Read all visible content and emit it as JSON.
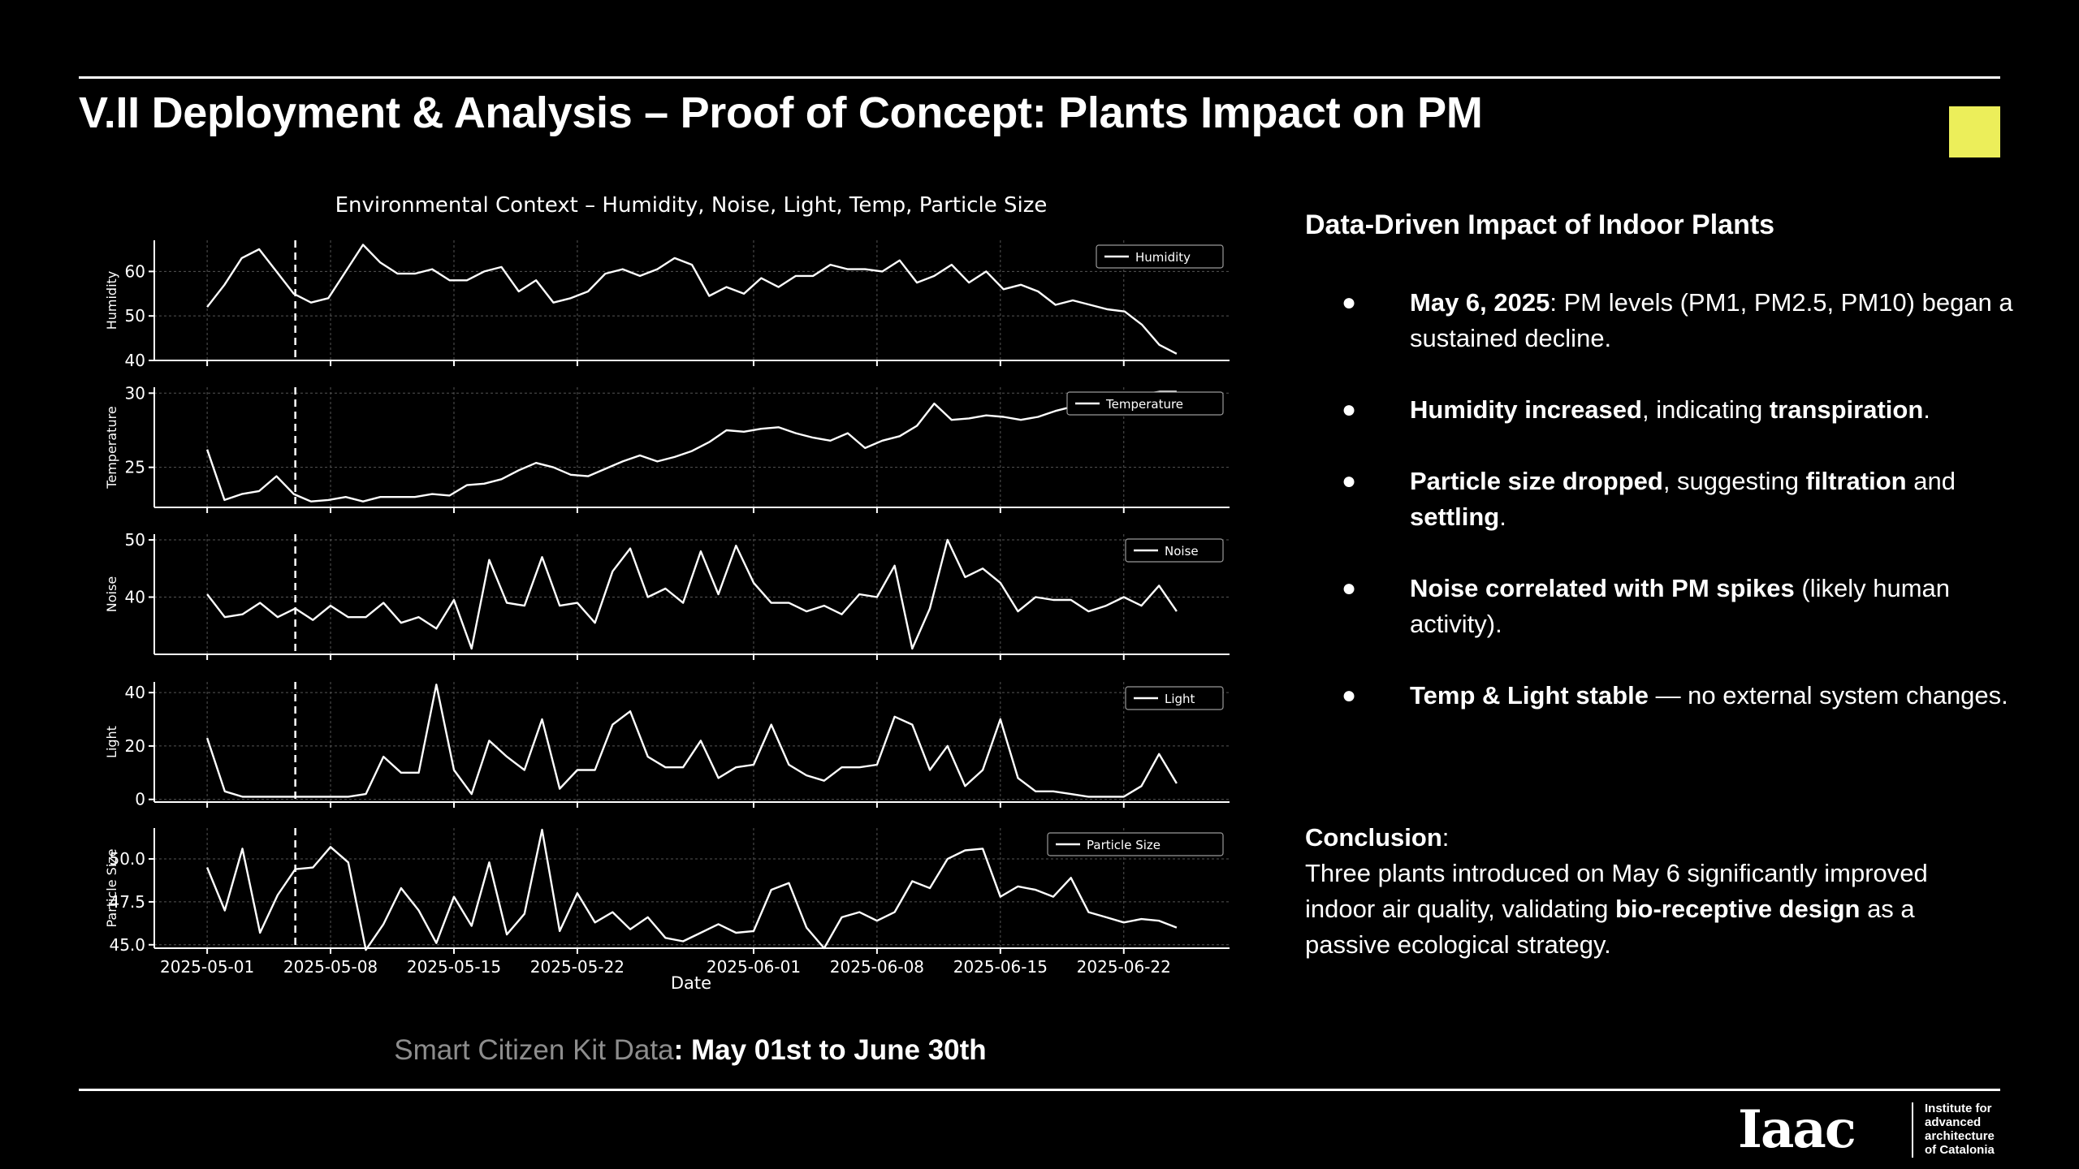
{
  "slide": {
    "title": "V.II Deployment & Analysis – Proof of Concept: Plants Impact on PM",
    "accent_color": "#ecee5a"
  },
  "caption": {
    "label": "Smart Citizen Kit Data",
    "value": ": May 01st to June 30th"
  },
  "chart_data": {
    "type": "line",
    "title": "Environmental Context – Humidity, Noise, Light, Temp, Particle Size",
    "xlabel": "Date",
    "x_ticks": [
      "2025-05-01",
      "2025-05-08",
      "2025-05-15",
      "2025-05-22",
      "2025-06-01",
      "2025-06-08",
      "2025-06-15",
      "2025-06-22"
    ],
    "x_start": "2025-05-01",
    "x_end": "2025-06-25",
    "xlim": [
      "2025-04-28",
      "2025-06-28"
    ],
    "event_marker": {
      "date": "2025-05-06",
      "style": "dashed vertical line"
    },
    "grid": true,
    "legend_position": "upper right",
    "line_color": "#ffffff",
    "panels": [
      {
        "ylabel": "Humidity",
        "legend": "Humidity",
        "ylim": [
          40,
          67
        ],
        "y_ticks": [
          "40",
          "50",
          "60"
        ],
        "y_tick_values": [
          40,
          50,
          60
        ],
        "values": [
          52,
          57,
          63,
          65,
          60,
          55,
          53,
          54,
          60,
          66,
          62,
          59.5,
          59.5,
          60.5,
          58,
          58,
          60,
          61,
          55.5,
          58,
          53,
          54,
          55.5,
          59.5,
          60.5,
          59,
          60.5,
          63,
          61.5,
          54.5,
          56.5,
          55,
          58.5,
          56.5,
          59,
          59,
          61.5,
          60.5,
          60.5,
          60,
          62.5,
          57.5,
          59,
          61.5,
          57.5,
          60,
          56,
          57,
          55.5,
          52.5,
          53.5,
          52.5,
          51.5,
          51,
          48,
          43.5,
          41.5
        ]
      },
      {
        "ylabel": "Temperature",
        "legend": "Temperature",
        "ylim": [
          22.3,
          30.4
        ],
        "y_ticks": [
          "25",
          "30"
        ],
        "y_tick_values": [
          25,
          30
        ],
        "values": [
          26.2,
          22.8,
          23.2,
          23.4,
          24.4,
          23.2,
          22.7,
          22.8,
          23,
          22.7,
          23,
          23,
          23,
          23.2,
          23.1,
          23.8,
          23.9,
          24.2,
          24.8,
          25.3,
          25,
          24.5,
          24.4,
          24.9,
          25.4,
          25.8,
          25.4,
          25.7,
          26.1,
          26.7,
          27.5,
          27.4,
          27.6,
          27.7,
          27.3,
          27,
          26.8,
          27.3,
          26.3,
          26.8,
          27.1,
          27.8,
          29.3,
          28.2,
          28.3,
          28.5,
          28.4,
          28.2,
          28.4,
          28.8,
          29.1,
          29.6,
          29.8,
          29.8,
          29.9,
          30.1,
          30.1
        ]
      },
      {
        "ylabel": "Noise",
        "legend": "Noise",
        "ylim": [
          30,
          51
        ],
        "y_ticks": [
          "40",
          "50"
        ],
        "y_tick_values": [
          40,
          50
        ],
        "values": [
          40.5,
          36.5,
          37,
          39,
          36.5,
          38,
          36,
          38.5,
          36.5,
          36.5,
          39,
          35.5,
          36.5,
          34.5,
          39.5,
          31,
          46.5,
          39,
          38.5,
          47,
          38.5,
          39,
          35.5,
          44.5,
          48.5,
          40,
          41.5,
          39,
          48,
          40.5,
          49,
          42.5,
          39,
          39,
          37.5,
          38.5,
          37,
          40.5,
          40,
          45.5,
          31,
          38,
          50,
          43.5,
          45,
          42.5,
          37.5,
          40,
          39.5,
          39.5,
          37.5,
          38.5,
          40,
          38.5,
          42,
          37.5
        ]
      },
      {
        "ylabel": "Light",
        "legend": "Light",
        "ylim": [
          -1,
          44
        ],
        "y_ticks": [
          "0",
          "20",
          "40"
        ],
        "y_tick_values": [
          0,
          20,
          40
        ],
        "values": [
          23,
          3,
          1,
          1,
          1,
          1,
          1,
          1,
          1,
          2,
          16,
          10,
          10,
          43,
          11,
          2,
          22,
          16,
          11,
          30,
          4,
          11,
          11,
          28,
          33,
          16,
          12,
          12,
          22,
          8,
          12,
          13,
          28,
          13,
          9,
          7,
          12,
          12,
          13,
          31,
          28,
          11,
          20,
          5,
          11,
          30,
          8,
          3,
          3,
          2,
          1,
          1,
          1,
          5,
          17,
          6
        ]
      },
      {
        "ylabel": "Particle Size",
        "legend": "Particle Size",
        "ylim": [
          44.8,
          51.8
        ],
        "y_ticks": [
          "45.0",
          "47.5",
          "50.0"
        ],
        "y_tick_values": [
          45,
          47.5,
          50
        ],
        "values": [
          49.5,
          47,
          50.6,
          45.7,
          47.9,
          49.4,
          49.5,
          50.7,
          49.8,
          44.7,
          46.2,
          48.3,
          47,
          45.1,
          47.8,
          46.1,
          49.8,
          45.6,
          46.8,
          51.7,
          45.8,
          48,
          46.3,
          46.9,
          45.9,
          46.6,
          45.4,
          45.2,
          45.7,
          46.2,
          45.7,
          45.8,
          48.2,
          48.6,
          46,
          44.8,
          46.6,
          46.9,
          46.4,
          46.9,
          48.7,
          48.3,
          50,
          50.5,
          50.6,
          47.8,
          48.4,
          48.2,
          47.8,
          48.9,
          46.9,
          46.6,
          46.3,
          46.5,
          46.4,
          46
        ]
      }
    ]
  },
  "panel": {
    "title": "Data-Driven Impact of Indoor Plants",
    "bullet_symbol": "●",
    "bullets": [
      {
        "b1": "May 6, 2025",
        "t1": ": PM levels (PM1, PM2.5, PM10) began a sustained decline."
      },
      {
        "b1": "Humidity increased",
        "t1": ", indicating ",
        "b2": "transpiration",
        "t2": "."
      },
      {
        "b1": "Particle size dropped",
        "t1": ", suggesting ",
        "b2": "filtration",
        "t2": " and ",
        "b3": "settling",
        "t3": "."
      },
      {
        "b1": "Noise correlated with PM spikes",
        "t1": " (likely human activity)."
      },
      {
        "b1": "Temp & Light stable",
        "t1": " — no external system changes."
      }
    ]
  },
  "conclusion": {
    "heading": "Conclusion",
    "colon": ":",
    "text1": "Three plants introduced on May 6 significantly improved indoor air quality, validating ",
    "bold": "bio-receptive design",
    "text2": " as a passive ecological strategy."
  },
  "logo": {
    "mark": "Iaac",
    "lines": [
      "Institute for",
      "advanced",
      "architecture",
      "of Catalonia"
    ]
  }
}
